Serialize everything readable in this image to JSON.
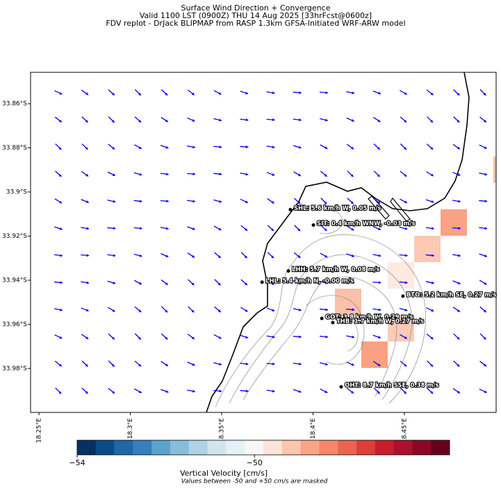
{
  "title_lines": [
    "Surface Wind Direction + Convergence",
    "Valid 1100 LST (0900Z) THU 14 Aug 2025 [33hrFcst@0600z]",
    "FDV replot - DrJack BLIPMAP from RASP 1.3km GFSA-Initiated WRF-ARW model"
  ],
  "map": {
    "xlim": [
      18.2454,
      18.5002
    ],
    "ylim": [
      33.8458,
      33.9999
    ],
    "xticks": [
      {
        "value": 18.25,
        "label": "18.25°E"
      },
      {
        "value": 18.3,
        "label": "18.3°E"
      },
      {
        "value": 18.35,
        "label": "18.35°E"
      },
      {
        "value": 18.4,
        "label": "18.4°E"
      },
      {
        "value": 18.45,
        "label": "18.45°E"
      }
    ],
    "yticks": [
      {
        "value": 33.86,
        "label": "33.86°S"
      },
      {
        "value": 33.88,
        "label": "33.88°S"
      },
      {
        "value": 33.9,
        "label": "33.9°S"
      },
      {
        "value": 33.92,
        "label": "33.92°S"
      },
      {
        "value": 33.94,
        "label": "33.94°S"
      },
      {
        "value": 33.96,
        "label": "33.96°S"
      },
      {
        "value": 33.98,
        "label": "33.98°S"
      }
    ],
    "stations": [
      {
        "label": "SHL: 5.6 km/h W, 0.05 m/s",
        "lon": 18.3876,
        "lat": 33.908
      },
      {
        "label": "SIT: 0.4 km/h WNW, -0.03 m/s",
        "lon": 18.4002,
        "lat": 33.915
      },
      {
        "label": "LHH: 5.7 km/h W, 0.08 m/s",
        "lon": 18.3865,
        "lat": 33.9358
      },
      {
        "label": "LHL: 5.4 km/h N, -0.00 m/s",
        "lon": 18.3721,
        "lat": 33.9409
      },
      {
        "label": "BTO: 5.2 km/h SE, 0.27 m/s",
        "lon": 18.4492,
        "lat": 33.9472
      },
      {
        "label": "GOT: 3.8 km/h W, 0.29 m/s",
        "lon": 18.4048,
        "lat": 33.9573
      },
      {
        "label": "THB: 1.7 km/h W, 0.27 m/s",
        "lon": 18.4108,
        "lat": 33.9592
      },
      {
        "label": "OHT: 8.7 km/h SSE, 0.38 m/s",
        "lon": 18.4154,
        "lat": 33.9883
      }
    ]
  },
  "colorbar": {
    "lim": [
      -54,
      -45.6
    ],
    "ticks": [
      {
        "value": -54,
        "label": "−54"
      },
      {
        "value": -50,
        "label": "−50"
      }
    ],
    "colors": [
      "#053061",
      "#0c4a8a",
      "#1f66ab",
      "#3480bd",
      "#5ea1cd",
      "#87bddb",
      "#b0d2e7",
      "#d1e5f0",
      "#e6f0f7",
      "#f7f7f7",
      "#fde3d8",
      "#fbc6ae",
      "#f7a587",
      "#f4866a",
      "#ea6551",
      "#dc4139",
      "#c6202a",
      "#a8122a",
      "#8a0824",
      "#67001f"
    ],
    "label": "Vertical Velocity [cm/s]",
    "note": "Values between -50 and +50 cm/s are masked"
  }
}
